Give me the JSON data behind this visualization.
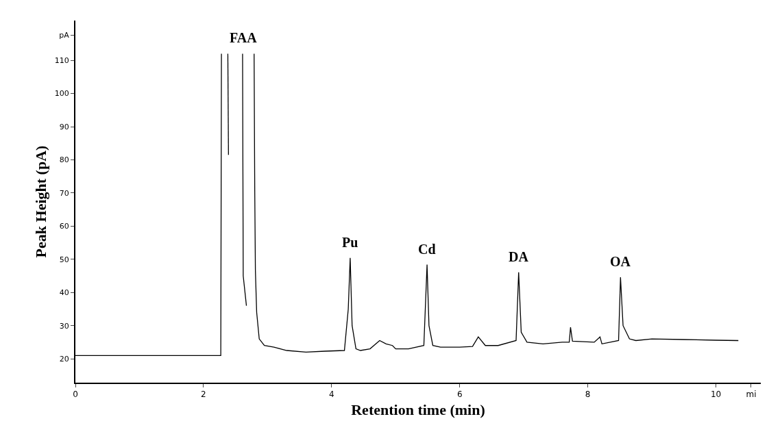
{
  "chart_data": {
    "type": "line",
    "xlabel": "Retention time (min)",
    "ylabel": "Peak Height (pA)",
    "x": [
      0,
      2.27,
      2.28,
      2.3,
      2.38,
      2.39,
      2.4,
      2.61,
      2.62,
      2.67,
      2.68,
      2.7,
      2.79,
      2.8,
      2.81,
      2.83,
      2.87,
      2.95,
      3.1,
      3.3,
      3.6,
      3.9,
      4.2,
      4.26,
      4.29,
      4.32,
      4.38,
      4.45,
      4.6,
      4.75,
      4.85,
      4.95,
      5.0,
      5.2,
      5.44,
      5.49,
      5.52,
      5.58,
      5.7,
      6.0,
      6.2,
      6.29,
      6.4,
      6.6,
      6.88,
      6.92,
      6.96,
      7.05,
      7.3,
      7.6,
      7.71,
      7.73,
      7.76,
      8.1,
      8.19,
      8.22,
      8.35,
      8.48,
      8.51,
      8.55,
      8.65,
      8.75,
      9.0,
      9.5,
      10.0,
      10.35
    ],
    "values": [
      21,
      21,
      112,
      null,
      112,
      81.5,
      null,
      112,
      45,
      36,
      null,
      null,
      112,
      70.7,
      46.7,
      34,
      26,
      24,
      23.5,
      22.5,
      22,
      22.3,
      22.5,
      35,
      50.4,
      30,
      23,
      22.5,
      23,
      25.5,
      24.5,
      24,
      23,
      23,
      24,
      48.4,
      30,
      24,
      23.5,
      23.5,
      23.7,
      26.6,
      24,
      24,
      25.5,
      46.1,
      28,
      25,
      24.5,
      25,
      25,
      29.5,
      25.3,
      25,
      26.6,
      24.5,
      25,
      25.5,
      44.6,
      30,
      26,
      25.5,
      26,
      25.8,
      25.6,
      25.5
    ],
    "color": "#000000",
    "xlim": [
      0,
      10.7
    ],
    "ylim": [
      12.8,
      122
    ],
    "xticks": [
      0,
      2,
      4,
      6,
      8,
      10,
      {
        "value": 10.55,
        "label": "mi"
      }
    ],
    "yticks": [
      20,
      30,
      40,
      50,
      60,
      70,
      80,
      90,
      100,
      110,
      {
        "value": 117.6,
        "label": "pA"
      }
    ],
    "annotations": [
      {
        "text": "FAA",
        "x": 2.62,
        "y": 112
      },
      {
        "text": "Pu",
        "x": 4.29,
        "y": 50.4
      },
      {
        "text": "Cd",
        "x": 5.49,
        "y": 48.4
      },
      {
        "text": "DA",
        "x": 6.92,
        "y": 46.1
      },
      {
        "text": "OA",
        "x": 8.51,
        "y": 44.6
      }
    ]
  }
}
